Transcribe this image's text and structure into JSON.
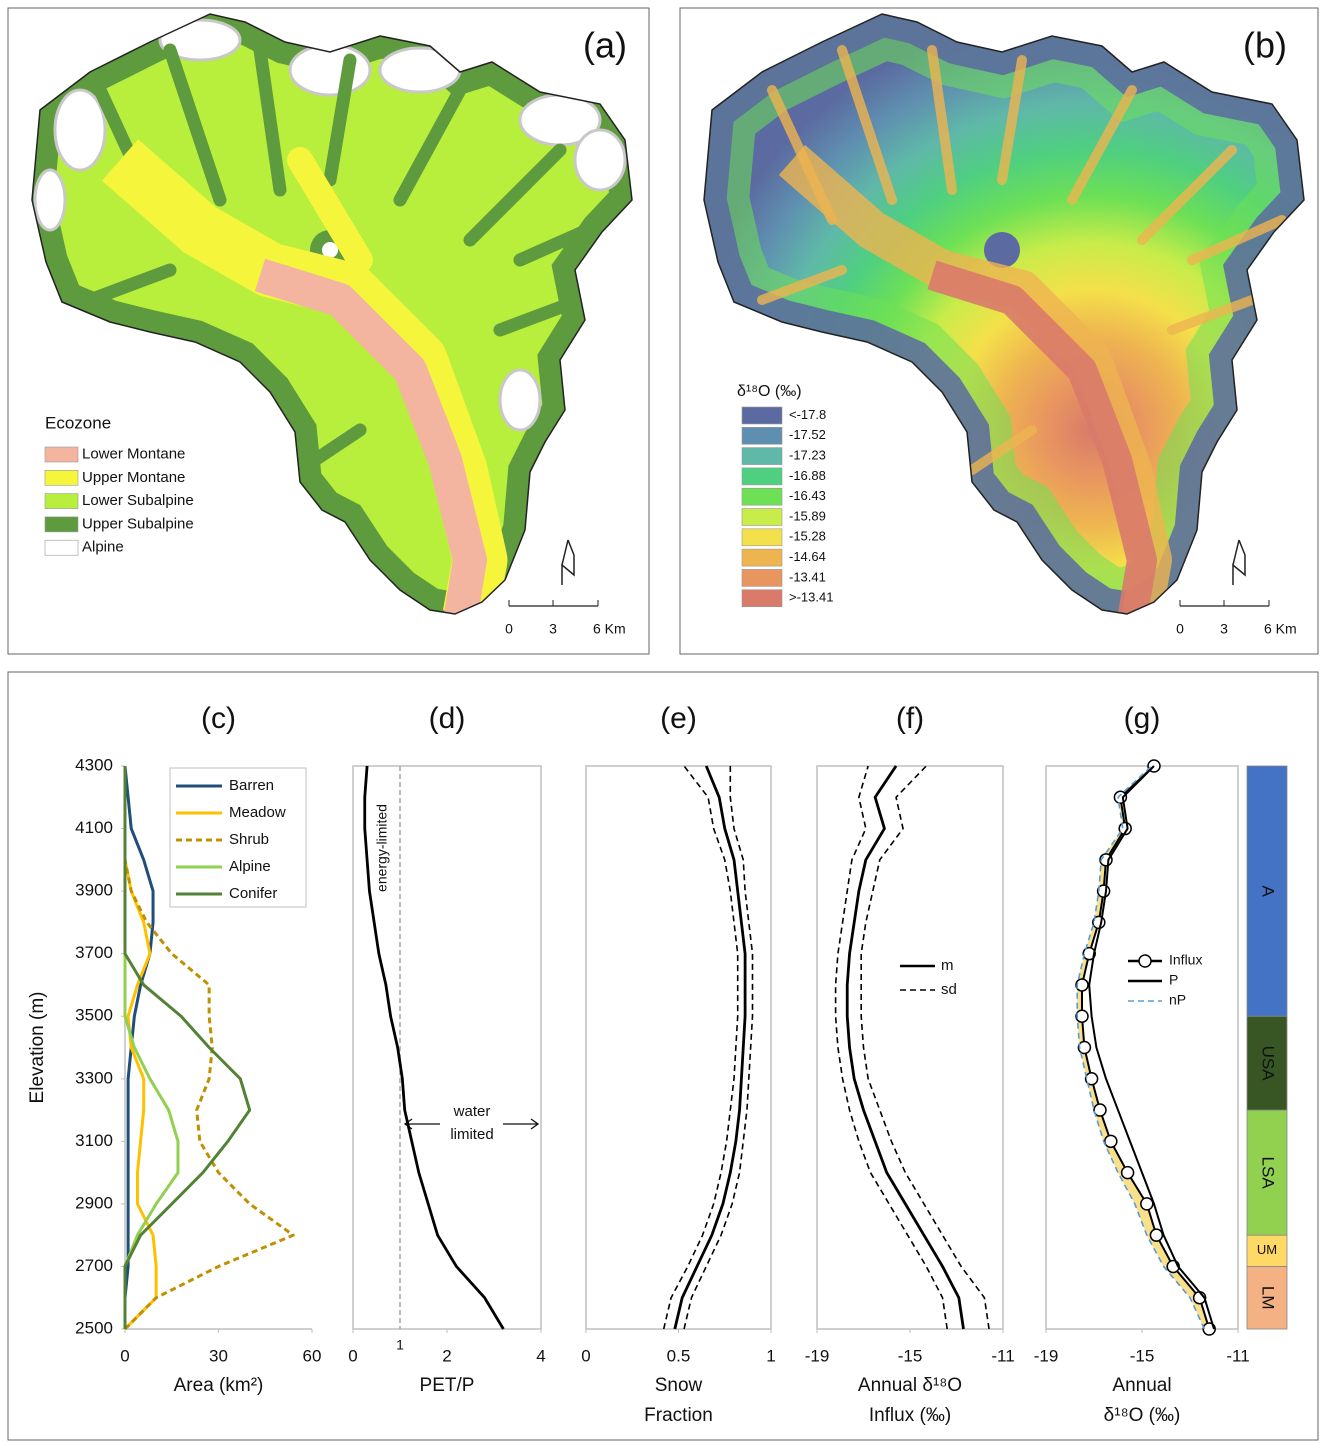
{
  "maps": [
    {
      "label": "(a)",
      "legend": {
        "title": "Ecozone",
        "items": [
          {
            "label": "Lower Montane",
            "color": "#f4b5a0"
          },
          {
            "label": "Upper Montane",
            "color": "#f5f53c"
          },
          {
            "label": "Lower Subalpine",
            "color": "#b8ee3c"
          },
          {
            "label": "Upper Subalpine",
            "color": "#5e9a3e"
          },
          {
            "label": "Alpine",
            "color": "#ffffff"
          }
        ]
      },
      "scale": [
        "0",
        "3",
        "6 Km"
      ]
    },
    {
      "label": "(b)",
      "legend": {
        "title": "δ¹⁸O (‰)",
        "items": [
          {
            "label": "<-17.8",
            "color": "#5b6aa0"
          },
          {
            "label": "-17.52",
            "color": "#5f8fb0"
          },
          {
            "label": "-17.23",
            "color": "#5fb8a8"
          },
          {
            "label": "-16.88",
            "color": "#4fcf80"
          },
          {
            "label": "-16.43",
            "color": "#6de055"
          },
          {
            "label": "-15.89",
            "color": "#c8ec4a"
          },
          {
            "label": "-15.28",
            "color": "#f4e04a"
          },
          {
            "label": "-14.64",
            "color": "#eeb450"
          },
          {
            "label": "-13.41",
            "color": "#e89560"
          },
          {
            "label": ">-13.41",
            "color": "#d97a6a"
          }
        ]
      },
      "scale": [
        "0",
        "3",
        "6 Km"
      ]
    }
  ],
  "chart_data": [
    {
      "type": "line",
      "title": "(c)",
      "xlabel": [
        "Area (km²)"
      ],
      "ylabel": "Elevation (m)",
      "xlim": [
        0,
        60
      ],
      "xticks": [
        0,
        30,
        60
      ],
      "ylim": [
        2500,
        4300
      ],
      "yticks": [
        2500,
        2700,
        2900,
        3100,
        3300,
        3500,
        3700,
        3900,
        4100,
        4300
      ],
      "frame": false,
      "legend": "upper right",
      "y": [
        2500,
        2600,
        2700,
        2800,
        2900,
        3000,
        3100,
        3200,
        3300,
        3400,
        3500,
        3600,
        3700,
        3800,
        3900,
        4000,
        4100,
        4200,
        4300
      ],
      "series": [
        {
          "name": "Barren",
          "color": "#1f4e79",
          "values": [
            0,
            0,
            1,
            1,
            1,
            1,
            1,
            1,
            1,
            2,
            3,
            5,
            8,
            9,
            9,
            6,
            2,
            1,
            0
          ]
        },
        {
          "name": "Meadow",
          "color": "#ffc000",
          "values": [
            0,
            10,
            10,
            9,
            4,
            4,
            5,
            6,
            6,
            2,
            1,
            4,
            8,
            6,
            2,
            0,
            0,
            0,
            0
          ]
        },
        {
          "name": "Shrub",
          "color": "#bf9000",
          "dash": true,
          "values": [
            0,
            10,
            30,
            54,
            40,
            30,
            24,
            23,
            27,
            28,
            27,
            27,
            15,
            7,
            2,
            0,
            0,
            0,
            0
          ]
        },
        {
          "name": "Alpine",
          "color": "#92d050",
          "values": [
            0,
            0,
            0,
            4,
            10,
            17,
            17,
            14,
            8,
            3,
            0,
            0,
            0,
            0,
            0,
            0,
            0,
            0,
            0
          ]
        },
        {
          "name": "Conifer",
          "color": "#548235",
          "values": [
            0,
            0,
            0,
            5,
            15,
            25,
            33,
            40,
            37,
            27,
            18,
            6,
            0,
            0,
            0,
            0,
            0,
            0,
            0
          ]
        }
      ]
    },
    {
      "type": "line",
      "title": "(d)",
      "xlabel": [
        "PET/P"
      ],
      "xlim": [
        0,
        4
      ],
      "xticks": [
        0,
        2,
        4
      ],
      "ylim": [
        2500,
        4300
      ],
      "frame": true,
      "threshold": 1,
      "annotations": [
        {
          "lines": [
            "energy-limited"
          ]
        },
        {
          "lines": [
            "water",
            "limited"
          ]
        }
      ],
      "y": [
        2500,
        2600,
        2700,
        2800,
        2900,
        3000,
        3100,
        3200,
        3300,
        3400,
        3500,
        3600,
        3700,
        3800,
        3900,
        4000,
        4100,
        4200,
        4300
      ],
      "series": [
        {
          "color": "#000000",
          "values": [
            3.2,
            2.8,
            2.2,
            1.8,
            1.6,
            1.4,
            1.25,
            1.1,
            1.05,
            0.95,
            0.8,
            0.7,
            0.55,
            0.45,
            0.35,
            0.3,
            0.25,
            0.25,
            0.3
          ]
        }
      ]
    },
    {
      "type": "line",
      "title": "(e)",
      "xlabel": [
        "Snow",
        "Fraction"
      ],
      "xlim": [
        0,
        1
      ],
      "xticks": [
        0,
        0.5,
        1
      ],
      "ylim": [
        2500,
        4300
      ],
      "frame": true,
      "y": [
        2500,
        2600,
        2700,
        2800,
        2900,
        3000,
        3100,
        3200,
        3300,
        3400,
        3500,
        3600,
        3700,
        3800,
        3900,
        4000,
        4100,
        4200,
        4300
      ],
      "series": [
        {
          "color": "#000000",
          "values": [
            0.48,
            0.52,
            0.6,
            0.68,
            0.74,
            0.78,
            0.81,
            0.83,
            0.84,
            0.85,
            0.86,
            0.86,
            0.86,
            0.84,
            0.82,
            0.8,
            0.75,
            0.72,
            0.65
          ]
        },
        {
          "color": "#000000",
          "dash": true,
          "values": [
            0.42,
            0.46,
            0.55,
            0.63,
            0.69,
            0.73,
            0.76,
            0.78,
            0.8,
            0.81,
            0.82,
            0.82,
            0.82,
            0.8,
            0.78,
            0.75,
            0.69,
            0.66,
            0.53
          ]
        },
        {
          "color": "#000000",
          "dash": true,
          "values": [
            0.53,
            0.57,
            0.65,
            0.73,
            0.79,
            0.83,
            0.85,
            0.87,
            0.88,
            0.89,
            0.9,
            0.9,
            0.9,
            0.88,
            0.86,
            0.85,
            0.8,
            0.78,
            0.78
          ]
        }
      ]
    },
    {
      "type": "line",
      "title": "(f)",
      "xlabel": [
        "Annual δ¹⁸O",
        "Influx (‰)"
      ],
      "xlim": [
        -19,
        -11
      ],
      "xticks": [
        -19,
        -15,
        -11
      ],
      "ylim": [
        2500,
        4300
      ],
      "frame": true,
      "legend": "center right",
      "y": [
        2500,
        2600,
        2700,
        2800,
        2900,
        3000,
        3100,
        3200,
        3300,
        3400,
        3500,
        3600,
        3700,
        3800,
        3900,
        4000,
        4100,
        4200,
        4300
      ],
      "series": [
        {
          "name": "m",
          "color": "#000000",
          "values": [
            -12.7,
            -12.9,
            -13.6,
            -14.4,
            -15.2,
            -16.0,
            -16.5,
            -17.0,
            -17.4,
            -17.6,
            -17.7,
            -17.7,
            -17.6,
            -17.4,
            -17.2,
            -16.9,
            -16.1,
            -16.5,
            -15.6
          ]
        },
        {
          "name": "sd",
          "color": "#000000",
          "dash": true,
          "values": [
            -13.4,
            -13.6,
            -14.3,
            -15.1,
            -15.9,
            -16.7,
            -17.2,
            -17.6,
            -17.9,
            -18.1,
            -18.2,
            -18.2,
            -18.1,
            -17.9,
            -17.7,
            -17.5,
            -16.9,
            -17.2,
            -16.8
          ]
        },
        {
          "color": "#000000",
          "dash": true,
          "values": [
            -11.6,
            -11.8,
            -12.8,
            -13.6,
            -14.4,
            -15.2,
            -15.8,
            -16.3,
            -16.8,
            -17.0,
            -17.1,
            -17.1,
            -17.1,
            -16.9,
            -16.6,
            -16.3,
            -15.3,
            -15.6,
            -14.3
          ]
        }
      ]
    },
    {
      "type": "line",
      "title": "(g)",
      "xlabel": [
        "Annual",
        "δ¹⁸O (‰)"
      ],
      "xlim": [
        -19,
        -11
      ],
      "xticks": [
        -19,
        -15,
        -11
      ],
      "ylim": [
        2500,
        4300
      ],
      "frame": true,
      "legend": "center right",
      "fill_between": [
        0,
        2
      ],
      "fill_color": "#fbe08c",
      "y": [
        2500,
        2600,
        2700,
        2800,
        2900,
        3000,
        3100,
        3200,
        3300,
        3400,
        3500,
        3600,
        3700,
        3800,
        3900,
        4000,
        4100,
        4200,
        4300
      ],
      "series": [
        {
          "name": "Influx",
          "color": "#000000",
          "marker": "circle",
          "values": [
            -12.2,
            -12.6,
            -13.7,
            -14.4,
            -14.8,
            -15.6,
            -16.3,
            -16.75,
            -17.1,
            -17.4,
            -17.5,
            -17.5,
            -17.2,
            -16.8,
            -16.6,
            -16.5,
            -15.7,
            -15.9,
            -14.5
          ]
        },
        {
          "name": "P",
          "color": "#000000",
          "values": [
            -12.0,
            -12.4,
            -13.5,
            -14.1,
            -14.5,
            -15.0,
            -15.5,
            -16.0,
            -16.5,
            -16.9,
            -17.1,
            -17.2,
            -17.0,
            -16.7,
            -16.5,
            -16.4,
            -15.6,
            -15.8,
            -14.5
          ]
        },
        {
          "name": "nP",
          "color": "#5b9bd5",
          "dash": true,
          "values": [
            -12.4,
            -13.0,
            -14.1,
            -14.8,
            -15.3,
            -16.0,
            -16.6,
            -17.0,
            -17.3,
            -17.6,
            -17.7,
            -17.7,
            -17.4,
            -17.0,
            -16.8,
            -16.7,
            -15.8,
            -16.0,
            -14.6
          ]
        }
      ],
      "zones": [
        {
          "label": "LM",
          "from": 2500,
          "to": 2700,
          "color": "#f4b183",
          "label_color": "#333333"
        },
        {
          "label": "UM",
          "from": 2700,
          "to": 2800,
          "color": "#ffd966",
          "label_color": "#333333"
        },
        {
          "label": "LSA",
          "from": 2800,
          "to": 3200,
          "color": "#92d050",
          "label_color": "#ffffff"
        },
        {
          "label": "USA",
          "from": 3200,
          "to": 3500,
          "color": "#375623",
          "label_color": "#ffffff"
        },
        {
          "label": "A",
          "from": 3500,
          "to": 4300,
          "color": "#4472c4",
          "label_color": "#ffffff"
        }
      ]
    }
  ]
}
